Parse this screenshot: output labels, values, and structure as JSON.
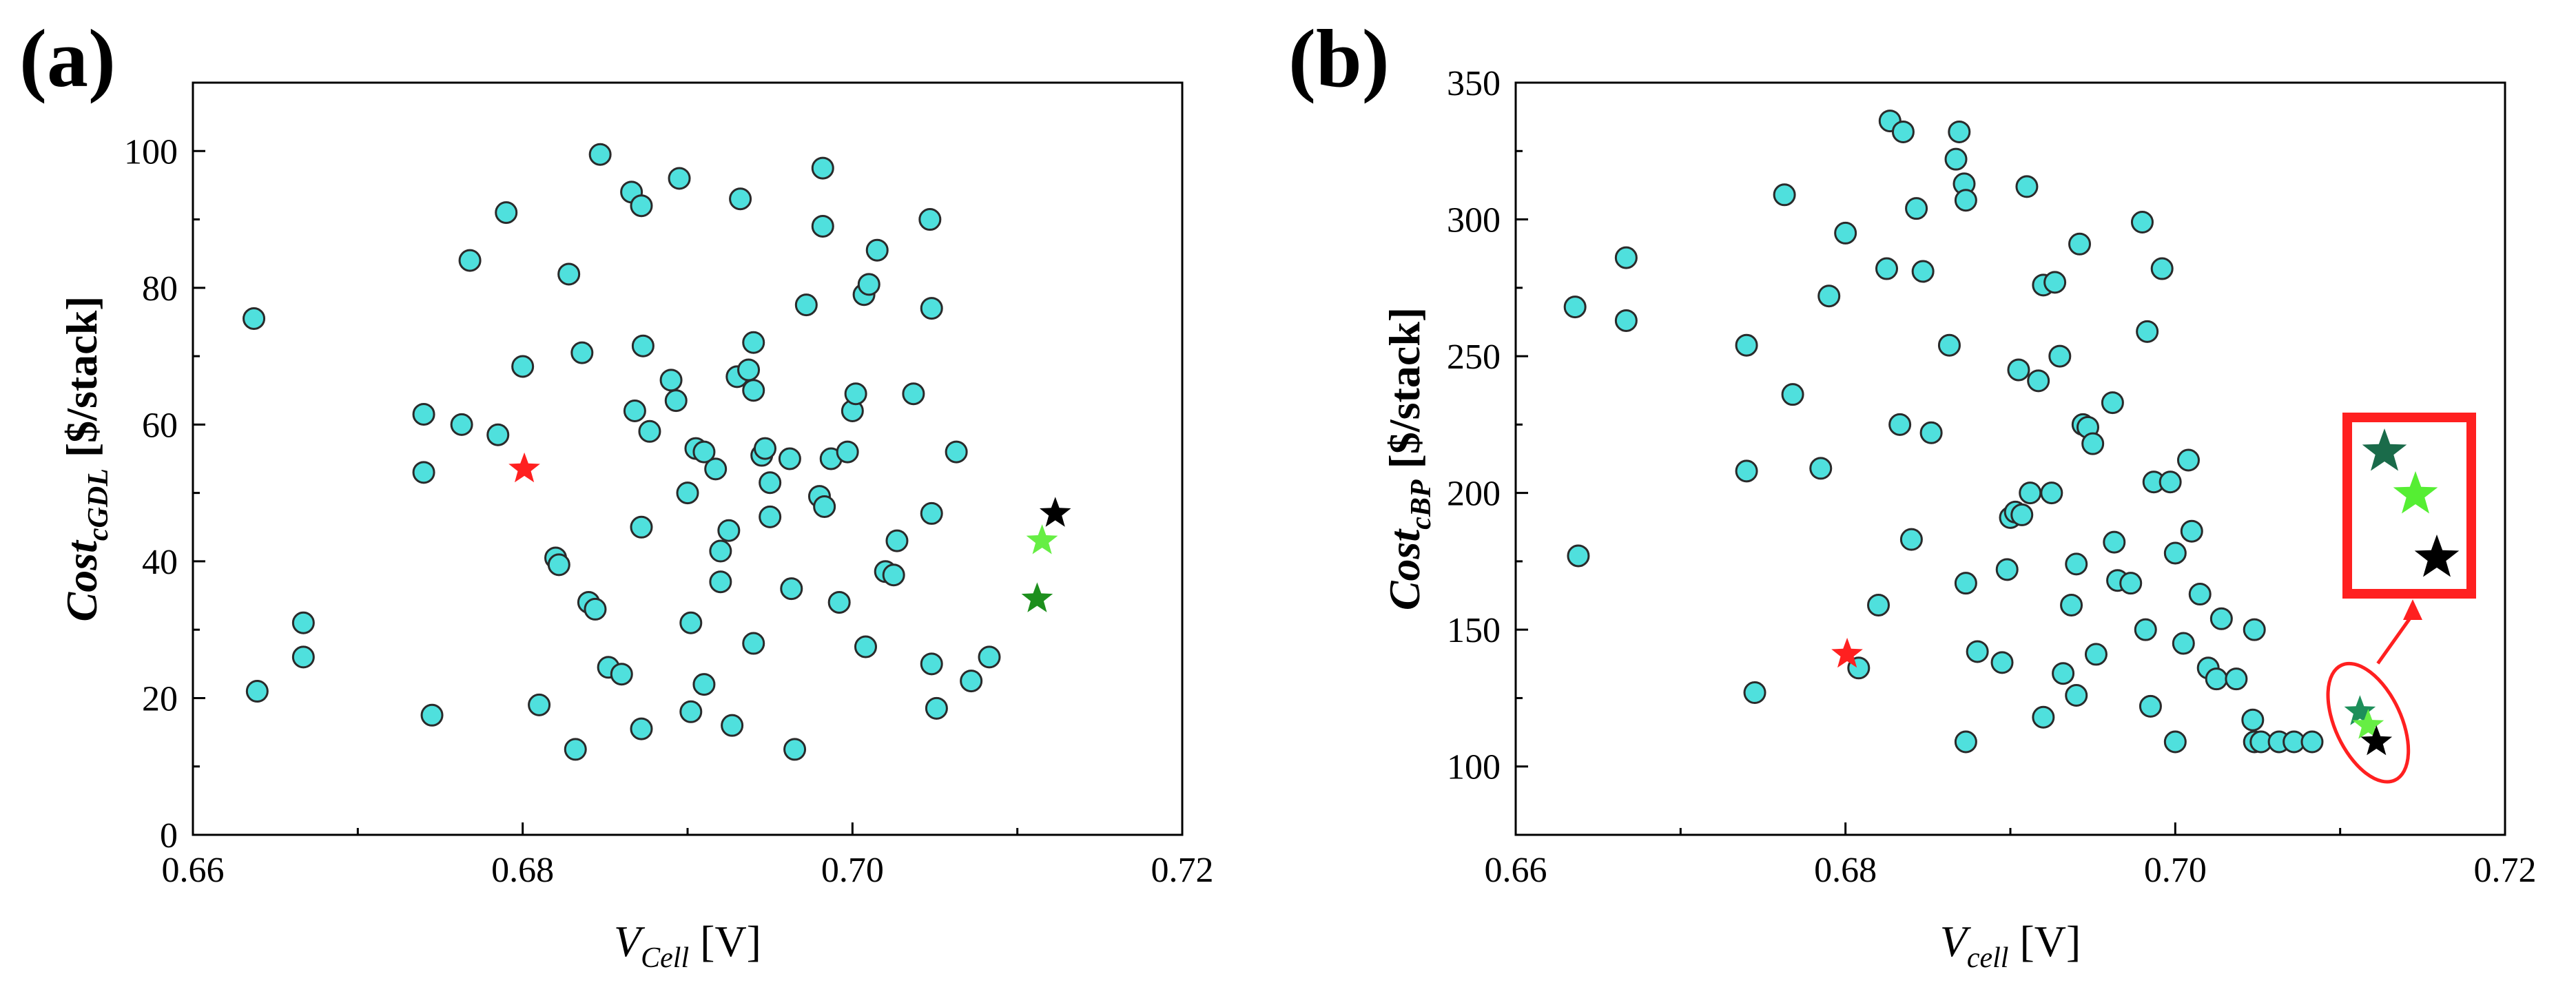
{
  "chart_data": [
    {
      "type": "scatter",
      "panel_label": "(a)",
      "xlabel": {
        "main": "V",
        "sub": "Cell",
        "unit": " [V]"
      },
      "ylabel": {
        "main": "Cost",
        "sub": "cGDL",
        "unit": " [$/stack]"
      },
      "xlim": [
        0.66,
        0.72
      ],
      "ylim": [
        0,
        110
      ],
      "xticks": [
        0.66,
        0.68,
        0.7,
        0.72
      ],
      "xtick_labels": [
        "0.66",
        "0.68",
        "0.70",
        "0.72"
      ],
      "yticks": [
        0,
        20,
        40,
        60,
        80,
        100
      ],
      "ytick_labels": [
        "0",
        "20",
        "40",
        "60",
        "80",
        "100"
      ],
      "grid": false,
      "points_color": "#4fe0dd",
      "points": [
        {
          "x": 0.6637,
          "y": 75.5
        },
        {
          "x": 0.6639,
          "y": 21.0
        },
        {
          "x": 0.6667,
          "y": 31.0
        },
        {
          "x": 0.6667,
          "y": 26.0
        },
        {
          "x": 0.674,
          "y": 61.5
        },
        {
          "x": 0.674,
          "y": 53.0
        },
        {
          "x": 0.6745,
          "y": 17.5
        },
        {
          "x": 0.6763,
          "y": 60.0
        },
        {
          "x": 0.6768,
          "y": 84.0
        },
        {
          "x": 0.6785,
          "y": 58.5
        },
        {
          "x": 0.679,
          "y": 91.0
        },
        {
          "x": 0.68,
          "y": 68.5
        },
        {
          "x": 0.681,
          "y": 19.0
        },
        {
          "x": 0.682,
          "y": 40.5
        },
        {
          "x": 0.6822,
          "y": 39.5
        },
        {
          "x": 0.6828,
          "y": 82.0
        },
        {
          "x": 0.6832,
          "y": 12.5
        },
        {
          "x": 0.6836,
          "y": 70.5
        },
        {
          "x": 0.684,
          "y": 34.0
        },
        {
          "x": 0.6844,
          "y": 33.0
        },
        {
          "x": 0.6847,
          "y": 99.5
        },
        {
          "x": 0.6852,
          "y": 24.5
        },
        {
          "x": 0.686,
          "y": 23.5
        },
        {
          "x": 0.6866,
          "y": 94.0
        },
        {
          "x": 0.6868,
          "y": 62.0
        },
        {
          "x": 0.6872,
          "y": 92.0
        },
        {
          "x": 0.6873,
          "y": 71.5
        },
        {
          "x": 0.6872,
          "y": 45.0
        },
        {
          "x": 0.6872,
          "y": 15.5
        },
        {
          "x": 0.6877,
          "y": 59.0
        },
        {
          "x": 0.689,
          "y": 66.5
        },
        {
          "x": 0.6893,
          "y": 63.5
        },
        {
          "x": 0.6895,
          "y": 96.0
        },
        {
          "x": 0.69,
          "y": 50.0
        },
        {
          "x": 0.6902,
          "y": 31.0
        },
        {
          "x": 0.6902,
          "y": 18.0
        },
        {
          "x": 0.6905,
          "y": 56.5
        },
        {
          "x": 0.691,
          "y": 56.0
        },
        {
          "x": 0.691,
          "y": 22.0
        },
        {
          "x": 0.6917,
          "y": 53.5
        },
        {
          "x": 0.692,
          "y": 41.5
        },
        {
          "x": 0.692,
          "y": 37.0
        },
        {
          "x": 0.6925,
          "y": 44.5
        },
        {
          "x": 0.6927,
          "y": 16.0
        },
        {
          "x": 0.693,
          "y": 67.0
        },
        {
          "x": 0.6932,
          "y": 93.0
        },
        {
          "x": 0.6937,
          "y": 68.0
        },
        {
          "x": 0.694,
          "y": 65.0
        },
        {
          "x": 0.694,
          "y": 72.0
        },
        {
          "x": 0.694,
          "y": 28.0
        },
        {
          "x": 0.6945,
          "y": 55.5
        },
        {
          "x": 0.6947,
          "y": 56.5
        },
        {
          "x": 0.695,
          "y": 51.5
        },
        {
          "x": 0.695,
          "y": 46.5
        },
        {
          "x": 0.6962,
          "y": 55.0
        },
        {
          "x": 0.6963,
          "y": 36.0
        },
        {
          "x": 0.6965,
          "y": 12.5
        },
        {
          "x": 0.6972,
          "y": 77.5
        },
        {
          "x": 0.698,
          "y": 49.5
        },
        {
          "x": 0.6982,
          "y": 97.5
        },
        {
          "x": 0.6982,
          "y": 89.0
        },
        {
          "x": 0.6983,
          "y": 48.0
        },
        {
          "x": 0.6987,
          "y": 55.0
        },
        {
          "x": 0.6992,
          "y": 34.0
        },
        {
          "x": 0.6997,
          "y": 56.0
        },
        {
          "x": 0.7,
          "y": 62.0
        },
        {
          "x": 0.7002,
          "y": 64.5
        },
        {
          "x": 0.7007,
          "y": 79.0
        },
        {
          "x": 0.7008,
          "y": 27.5
        },
        {
          "x": 0.701,
          "y": 80.5
        },
        {
          "x": 0.7015,
          "y": 85.5
        },
        {
          "x": 0.702,
          "y": 38.5
        },
        {
          "x": 0.7025,
          "y": 38.0
        },
        {
          "x": 0.7027,
          "y": 43.0
        },
        {
          "x": 0.7037,
          "y": 64.5
        },
        {
          "x": 0.7047,
          "y": 90.0
        },
        {
          "x": 0.7048,
          "y": 77.0
        },
        {
          "x": 0.7048,
          "y": 47.0
        },
        {
          "x": 0.7048,
          "y": 25.0
        },
        {
          "x": 0.7051,
          "y": 18.5
        },
        {
          "x": 0.7063,
          "y": 56.0
        },
        {
          "x": 0.7072,
          "y": 22.5
        },
        {
          "x": 0.7083,
          "y": 26.0
        }
      ],
      "stars": [
        {
          "x": 0.6801,
          "y": 53.5,
          "color": "#ff2020"
        },
        {
          "x": 0.7112,
          "y": 34.5,
          "color": "#1d8f1d"
        },
        {
          "x": 0.7115,
          "y": 43.0,
          "color": "#66ee44"
        },
        {
          "x": 0.7123,
          "y": 47.0,
          "color": "#000000"
        }
      ]
    },
    {
      "type": "scatter",
      "panel_label": "(b)",
      "xlabel": {
        "main": "V",
        "sub": "cell",
        "unit": " [V]"
      },
      "ylabel": {
        "main": "Cost",
        "sub": "cBP",
        "unit": " [$/stack]"
      },
      "xlim": [
        0.66,
        0.72
      ],
      "ylim": [
        75,
        350
      ],
      "xticks": [
        0.66,
        0.68,
        0.7,
        0.72
      ],
      "xtick_labels": [
        "0.66",
        "0.68",
        "0.70",
        "0.72"
      ],
      "yticks": [
        100,
        150,
        200,
        250,
        300,
        350
      ],
      "ytick_labels": [
        "100",
        "150",
        "200",
        "250",
        "300",
        "350"
      ],
      "grid": false,
      "points_color": "#4fe0dd",
      "points": [
        {
          "x": 0.6636,
          "y": 268
        },
        {
          "x": 0.6638,
          "y": 177
        },
        {
          "x": 0.6667,
          "y": 286
        },
        {
          "x": 0.6667,
          "y": 263
        },
        {
          "x": 0.674,
          "y": 254
        },
        {
          "x": 0.674,
          "y": 208
        },
        {
          "x": 0.6745,
          "y": 127
        },
        {
          "x": 0.6763,
          "y": 309
        },
        {
          "x": 0.6768,
          "y": 236
        },
        {
          "x": 0.6785,
          "y": 209
        },
        {
          "x": 0.679,
          "y": 272
        },
        {
          "x": 0.68,
          "y": 295
        },
        {
          "x": 0.6808,
          "y": 136
        },
        {
          "x": 0.682,
          "y": 159
        },
        {
          "x": 0.6825,
          "y": 282
        },
        {
          "x": 0.6827,
          "y": 336
        },
        {
          "x": 0.6833,
          "y": 225
        },
        {
          "x": 0.6835,
          "y": 332
        },
        {
          "x": 0.684,
          "y": 183
        },
        {
          "x": 0.6843,
          "y": 304
        },
        {
          "x": 0.6847,
          "y": 281
        },
        {
          "x": 0.6852,
          "y": 222
        },
        {
          "x": 0.6863,
          "y": 254
        },
        {
          "x": 0.6867,
          "y": 322
        },
        {
          "x": 0.6869,
          "y": 332
        },
        {
          "x": 0.6872,
          "y": 313
        },
        {
          "x": 0.6873,
          "y": 307
        },
        {
          "x": 0.6873,
          "y": 167
        },
        {
          "x": 0.6873,
          "y": 109
        },
        {
          "x": 0.688,
          "y": 142
        },
        {
          "x": 0.6895,
          "y": 138
        },
        {
          "x": 0.6898,
          "y": 172
        },
        {
          "x": 0.69,
          "y": 191
        },
        {
          "x": 0.6903,
          "y": 193
        },
        {
          "x": 0.6905,
          "y": 245
        },
        {
          "x": 0.6907,
          "y": 192
        },
        {
          "x": 0.691,
          "y": 312
        },
        {
          "x": 0.6912,
          "y": 200
        },
        {
          "x": 0.6917,
          "y": 241
        },
        {
          "x": 0.692,
          "y": 276
        },
        {
          "x": 0.692,
          "y": 118
        },
        {
          "x": 0.6925,
          "y": 200
        },
        {
          "x": 0.6927,
          "y": 277
        },
        {
          "x": 0.693,
          "y": 250
        },
        {
          "x": 0.6932,
          "y": 134
        },
        {
          "x": 0.6937,
          "y": 159
        },
        {
          "x": 0.694,
          "y": 174
        },
        {
          "x": 0.694,
          "y": 126
        },
        {
          "x": 0.6942,
          "y": 291
        },
        {
          "x": 0.6944,
          "y": 225
        },
        {
          "x": 0.6947,
          "y": 224
        },
        {
          "x": 0.695,
          "y": 218
        },
        {
          "x": 0.6952,
          "y": 141
        },
        {
          "x": 0.6962,
          "y": 233
        },
        {
          "x": 0.6963,
          "y": 182
        },
        {
          "x": 0.6965,
          "y": 168
        },
        {
          "x": 0.6973,
          "y": 167
        },
        {
          "x": 0.698,
          "y": 299
        },
        {
          "x": 0.6982,
          "y": 150
        },
        {
          "x": 0.6983,
          "y": 259
        },
        {
          "x": 0.6985,
          "y": 122
        },
        {
          "x": 0.6987,
          "y": 204
        },
        {
          "x": 0.6992,
          "y": 282
        },
        {
          "x": 0.6997,
          "y": 204
        },
        {
          "x": 0.7,
          "y": 178
        },
        {
          "x": 0.7,
          "y": 109
        },
        {
          "x": 0.7005,
          "y": 145
        },
        {
          "x": 0.7008,
          "y": 212
        },
        {
          "x": 0.701,
          "y": 186
        },
        {
          "x": 0.7015,
          "y": 163
        },
        {
          "x": 0.702,
          "y": 136
        },
        {
          "x": 0.7025,
          "y": 132
        },
        {
          "x": 0.7028,
          "y": 154
        },
        {
          "x": 0.7037,
          "y": 132
        },
        {
          "x": 0.7047,
          "y": 117
        },
        {
          "x": 0.7048,
          "y": 150
        },
        {
          "x": 0.7048,
          "y": 109
        },
        {
          "x": 0.7052,
          "y": 109
        },
        {
          "x": 0.7063,
          "y": 109
        },
        {
          "x": 0.7072,
          "y": 109
        },
        {
          "x": 0.7083,
          "y": 109
        }
      ],
      "stars": [
        {
          "x": 0.6801,
          "y": 141,
          "color": "#ff2020"
        },
        {
          "x": 0.7112,
          "y": 120,
          "color": "#1d8f5a"
        },
        {
          "x": 0.7117,
          "y": 115,
          "color": "#66ee44"
        },
        {
          "x": 0.7122,
          "y": 109,
          "color": "#000000"
        }
      ],
      "highlight_ellipse": {
        "cx": 0.7117,
        "cy": 116,
        "color": "#ff2020"
      },
      "inset_box_color": "#ff2020",
      "inset_stars": [
        {
          "color": "#1a6b4a"
        },
        {
          "color": "#55ee33"
        },
        {
          "color": "#000000"
        }
      ]
    }
  ]
}
